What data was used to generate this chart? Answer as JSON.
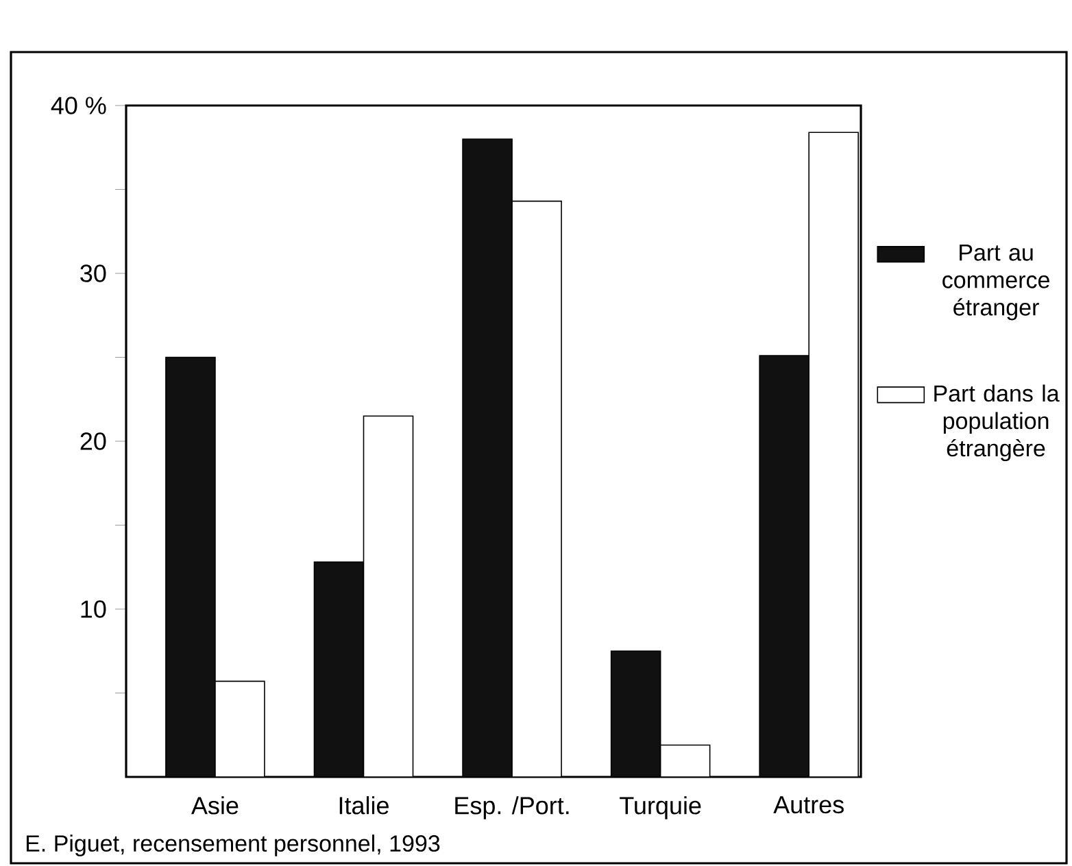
{
  "chart_data": {
    "type": "bar",
    "categories": [
      "Asie",
      "Italie",
      "Esp. /Port.",
      "Turquie",
      "Autres"
    ],
    "series": [
      {
        "name": "Part au commerce étranger",
        "color": "#111111",
        "values": [
          25,
          12.8,
          38,
          7.5,
          25.1
        ]
      },
      {
        "name": "Part dans la population étrangère",
        "color": "#ffffff",
        "values": [
          5.7,
          21.5,
          34.3,
          1.9,
          38.4
        ]
      }
    ],
    "ylim": [
      0,
      40
    ],
    "yticks": [
      {
        "value": 5,
        "label": null
      },
      10,
      {
        "value": 15,
        "label": null
      },
      20,
      {
        "value": 25,
        "label": null
      },
      30,
      {
        "value": 35,
        "label": null
      },
      {
        "value": 40,
        "label": "40 %"
      }
    ],
    "legend": "right",
    "annotations": [
      "E. Piguet, recensement personnel, 1993"
    ]
  }
}
